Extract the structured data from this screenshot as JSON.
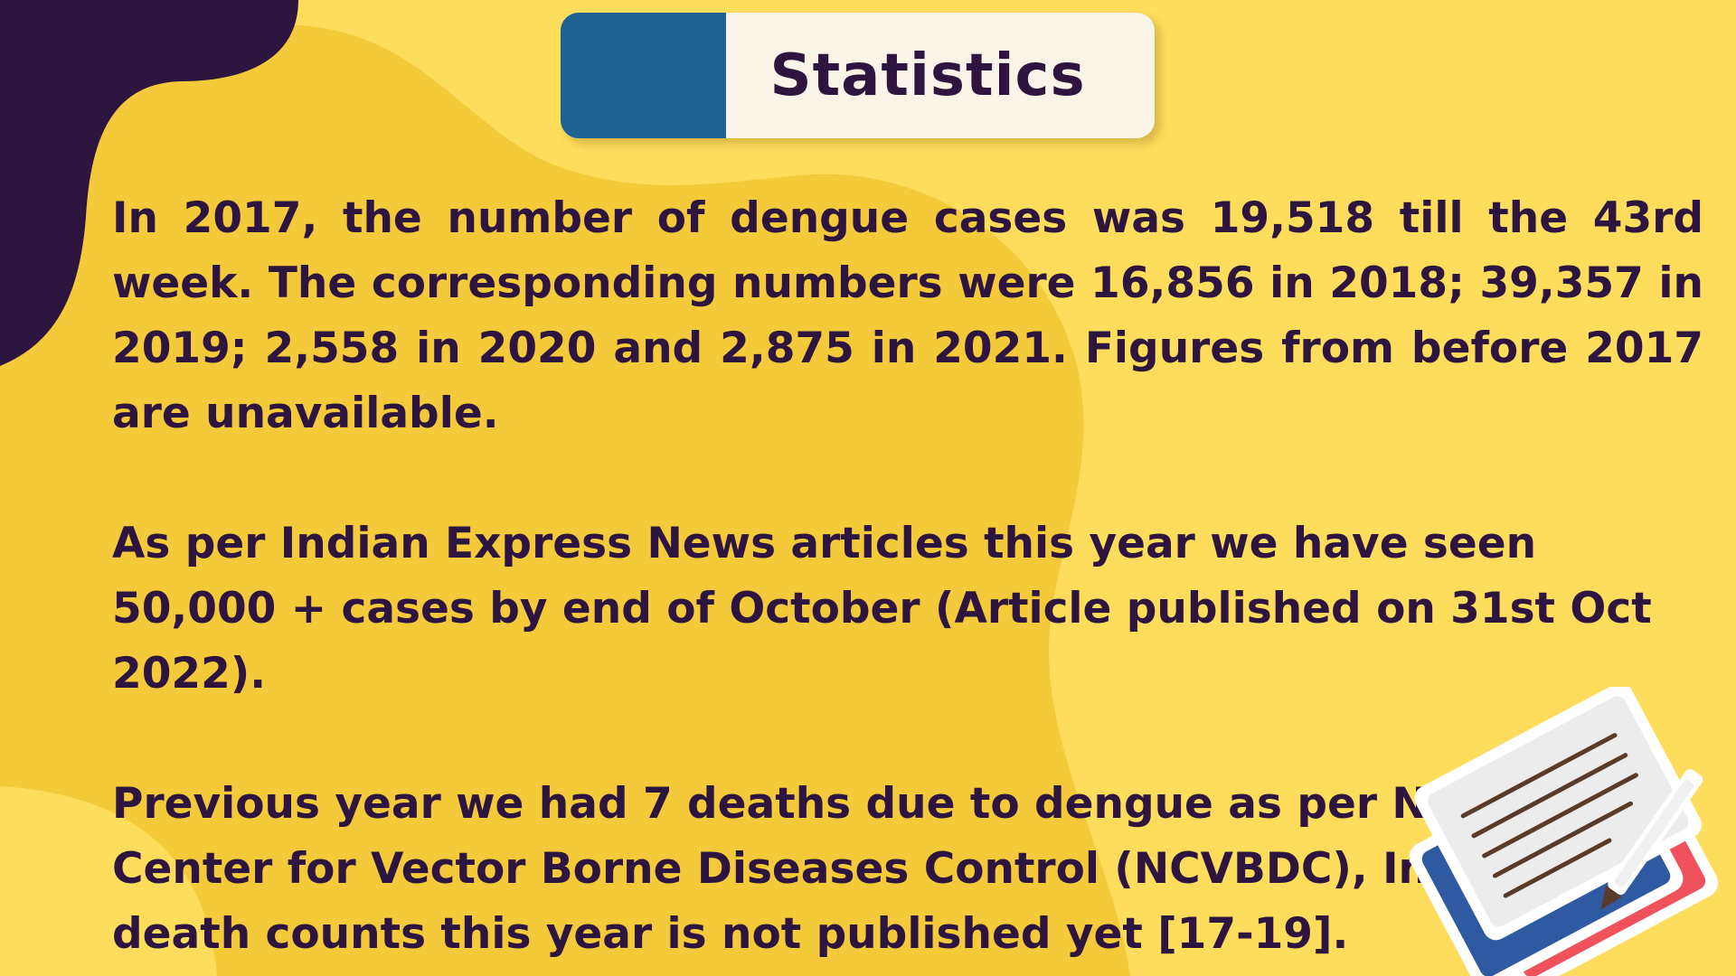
{
  "title": "Statistics",
  "paragraphs": [
    "In 2017, the number of dengue cases was 19,518 till the 43rd week. The corresponding numbers were 16,856 in 2018; 39,357 in 2019; 2,558 in 2020 and 2,875 in 2021. Figures from before 2017 are unavailable.",
    "As per Indian Express News articles this year we have seen 50,000 + cases by end of October (Article published on 31st Oct 2022).",
    "Previous year we had 7 deaths due to dengue as per National Center for Vector Borne Diseases Control (NCVBDC), India the death counts this year is not published yet [17-19]."
  ],
  "illustration": {
    "icon": "documents-icon"
  },
  "colors": {
    "background": "#fedd5c",
    "blob": "#f4c93a",
    "corner": "#2d1540",
    "title_accent": "#1e6294",
    "title_panel": "#f8f4e8",
    "text": "#2d1540"
  }
}
